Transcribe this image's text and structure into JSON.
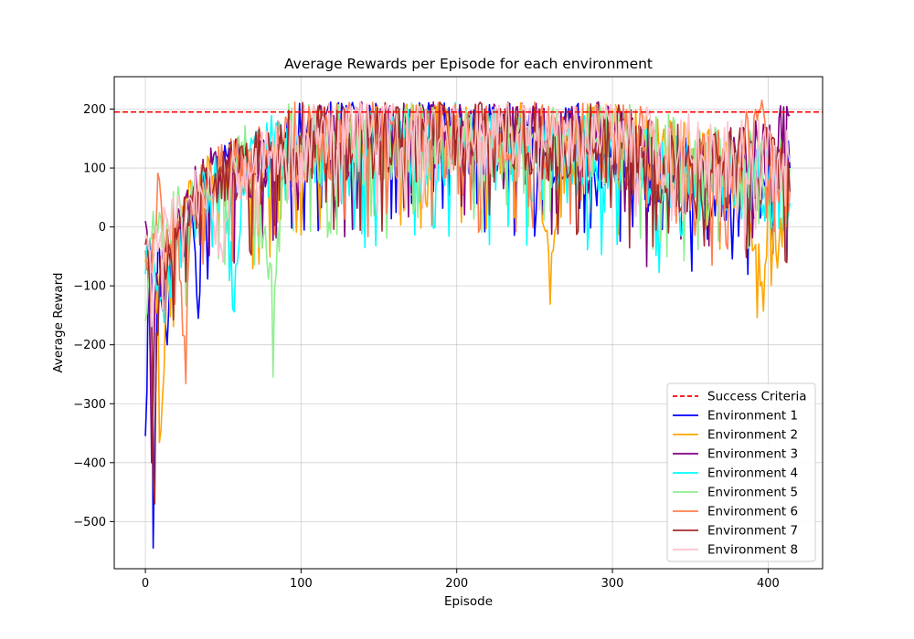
{
  "chart_data": {
    "type": "line",
    "title": "Average Rewards per Episode for each environment",
    "xlabel": "Episode",
    "ylabel": "Average Reward",
    "xlim": [
      -20,
      435
    ],
    "ylim": [
      -580,
      255
    ],
    "x_ticks": [
      0,
      100,
      200,
      300,
      400
    ],
    "y_ticks": [
      -500,
      -400,
      -300,
      -200,
      -100,
      0,
      100,
      200
    ],
    "grid": true,
    "legend_position": "lower-right",
    "episodes": [
      0,
      414
    ],
    "success_criteria": {
      "name": "Success Criteria",
      "value": 195,
      "color": "#ff0000",
      "style": "dashed"
    },
    "series": [
      {
        "name": "Environment 1",
        "color": "#0000ff",
        "anchors": [
          [
            0,
            -355
          ],
          [
            1,
            -280
          ],
          [
            2,
            -50
          ],
          [
            3,
            -20
          ],
          [
            4,
            -100
          ],
          [
            5,
            -545
          ],
          [
            6,
            -350
          ],
          [
            8,
            -30
          ],
          [
            10,
            -120
          ],
          [
            12,
            -80
          ],
          [
            14,
            -200
          ],
          [
            16,
            -60
          ],
          [
            20,
            -20
          ],
          [
            25,
            -50
          ],
          [
            30,
            30
          ],
          [
            34,
            -155
          ],
          [
            36,
            40
          ],
          [
            45,
            80
          ],
          [
            55,
            90
          ],
          [
            70,
            110
          ],
          [
            85,
            130
          ],
          [
            100,
            150
          ],
          [
            120,
            160
          ],
          [
            140,
            155
          ],
          [
            160,
            160
          ],
          [
            180,
            160
          ],
          [
            200,
            165
          ],
          [
            220,
            160
          ],
          [
            240,
            150
          ],
          [
            260,
            150
          ],
          [
            280,
            140
          ],
          [
            300,
            140
          ],
          [
            320,
            110
          ],
          [
            340,
            90
          ],
          [
            360,
            80
          ],
          [
            380,
            90
          ],
          [
            400,
            80
          ],
          [
            414,
            100
          ]
        ]
      },
      {
        "name": "Environment 2",
        "color": "#ffa500",
        "anchors": [
          [
            0,
            -60
          ],
          [
            2,
            -40
          ],
          [
            4,
            -300
          ],
          [
            6,
            -140
          ],
          [
            8,
            -80
          ],
          [
            10,
            -345
          ],
          [
            12,
            -245
          ],
          [
            14,
            -60
          ],
          [
            20,
            0
          ],
          [
            30,
            40
          ],
          [
            45,
            80
          ],
          [
            60,
            100
          ],
          [
            75,
            80
          ],
          [
            90,
            130
          ],
          [
            110,
            140
          ],
          [
            130,
            150
          ],
          [
            150,
            155
          ],
          [
            170,
            160
          ],
          [
            190,
            160
          ],
          [
            210,
            165
          ],
          [
            230,
            165
          ],
          [
            250,
            160
          ],
          [
            262,
            -40
          ],
          [
            270,
            140
          ],
          [
            290,
            160
          ],
          [
            310,
            150
          ],
          [
            330,
            120
          ],
          [
            350,
            100
          ],
          [
            370,
            90
          ],
          [
            385,
            80
          ],
          [
            395,
            -100
          ],
          [
            400,
            50
          ],
          [
            405,
            -40
          ],
          [
            414,
            90
          ]
        ]
      },
      {
        "name": "Environment 3",
        "color": "#800080",
        "anchors": [
          [
            0,
            10
          ],
          [
            2,
            -60
          ],
          [
            4,
            -400
          ],
          [
            6,
            -130
          ],
          [
            8,
            -100
          ],
          [
            10,
            -60
          ],
          [
            15,
            -30
          ],
          [
            20,
            -20
          ],
          [
            30,
            40
          ],
          [
            40,
            80
          ],
          [
            55,
            100
          ],
          [
            70,
            90
          ],
          [
            85,
            120
          ],
          [
            100,
            140
          ],
          [
            120,
            150
          ],
          [
            140,
            155
          ],
          [
            160,
            155
          ],
          [
            180,
            160
          ],
          [
            200,
            160
          ],
          [
            220,
            160
          ],
          [
            240,
            160
          ],
          [
            260,
            150
          ],
          [
            280,
            150
          ],
          [
            300,
            140
          ],
          [
            320,
            100
          ],
          [
            340,
            90
          ],
          [
            360,
            90
          ],
          [
            380,
            100
          ],
          [
            400,
            110
          ],
          [
            414,
            190
          ]
        ]
      },
      {
        "name": "Environment 4",
        "color": "#00ffff",
        "anchors": [
          [
            0,
            -80
          ],
          [
            3,
            -60
          ],
          [
            6,
            -70
          ],
          [
            8,
            -100
          ],
          [
            10,
            -120
          ],
          [
            13,
            -140
          ],
          [
            18,
            -40
          ],
          [
            25,
            -20
          ],
          [
            35,
            40
          ],
          [
            50,
            80
          ],
          [
            58,
            -65
          ],
          [
            65,
            120
          ],
          [
            80,
            140
          ],
          [
            100,
            130
          ],
          [
            120,
            120
          ],
          [
            140,
            125
          ],
          [
            160,
            130
          ],
          [
            180,
            130
          ],
          [
            200,
            140
          ],
          [
            220,
            140
          ],
          [
            240,
            120
          ],
          [
            260,
            110
          ],
          [
            280,
            120
          ],
          [
            300,
            125
          ],
          [
            320,
            100
          ],
          [
            340,
            80
          ],
          [
            360,
            70
          ],
          [
            380,
            80
          ],
          [
            400,
            70
          ],
          [
            414,
            40
          ]
        ]
      },
      {
        "name": "Environment 5",
        "color": "#90ee90",
        "anchors": [
          [
            0,
            -160
          ],
          [
            2,
            -90
          ],
          [
            4,
            -20
          ],
          [
            8,
            -10
          ],
          [
            12,
            -40
          ],
          [
            18,
            60
          ],
          [
            25,
            20
          ],
          [
            35,
            60
          ],
          [
            50,
            90
          ],
          [
            65,
            120
          ],
          [
            83,
            -105
          ],
          [
            90,
            150
          ],
          [
            110,
            140
          ],
          [
            130,
            140
          ],
          [
            150,
            145
          ],
          [
            170,
            150
          ],
          [
            190,
            150
          ],
          [
            210,
            150
          ],
          [
            230,
            150
          ],
          [
            250,
            155
          ],
          [
            270,
            155
          ],
          [
            290,
            150
          ],
          [
            310,
            140
          ],
          [
            330,
            120
          ],
          [
            350,
            110
          ],
          [
            370,
            100
          ],
          [
            390,
            100
          ],
          [
            414,
            100
          ]
        ]
      },
      {
        "name": "Environment 6",
        "color": "#ff7f50",
        "anchors": [
          [
            0,
            -40
          ],
          [
            3,
            -80
          ],
          [
            6,
            -20
          ],
          [
            9,
            80
          ],
          [
            12,
            -20
          ],
          [
            16,
            -30
          ],
          [
            20,
            10
          ],
          [
            25,
            -185
          ],
          [
            30,
            40
          ],
          [
            40,
            80
          ],
          [
            50,
            90
          ],
          [
            60,
            100
          ],
          [
            80,
            130
          ],
          [
            100,
            140
          ],
          [
            120,
            145
          ],
          [
            140,
            150
          ],
          [
            160,
            155
          ],
          [
            180,
            155
          ],
          [
            200,
            155
          ],
          [
            220,
            155
          ],
          [
            240,
            155
          ],
          [
            260,
            130
          ],
          [
            280,
            150
          ],
          [
            300,
            150
          ],
          [
            320,
            130
          ],
          [
            340,
            100
          ],
          [
            360,
            90
          ],
          [
            380,
            100
          ],
          [
            396,
            215
          ],
          [
            400,
            80
          ],
          [
            410,
            120
          ],
          [
            414,
            60
          ]
        ]
      },
      {
        "name": "Environment 7",
        "color": "#a52a2a",
        "anchors": [
          [
            0,
            -30
          ],
          [
            2,
            -60
          ],
          [
            4,
            -150
          ],
          [
            5,
            -430
          ],
          [
            6,
            -470
          ],
          [
            7,
            -180
          ],
          [
            9,
            -100
          ],
          [
            12,
            -60
          ],
          [
            16,
            -40
          ],
          [
            20,
            -20
          ],
          [
            30,
            40
          ],
          [
            45,
            90
          ],
          [
            60,
            100
          ],
          [
            80,
            120
          ],
          [
            100,
            140
          ],
          [
            120,
            150
          ],
          [
            140,
            150
          ],
          [
            160,
            155
          ],
          [
            180,
            160
          ],
          [
            200,
            160
          ],
          [
            220,
            160
          ],
          [
            240,
            160
          ],
          [
            260,
            150
          ],
          [
            280,
            150
          ],
          [
            300,
            150
          ],
          [
            320,
            120
          ],
          [
            340,
            100
          ],
          [
            360,
            100
          ],
          [
            380,
            110
          ],
          [
            400,
            110
          ],
          [
            414,
            60
          ]
        ]
      },
      {
        "name": "Environment 8",
        "color": "#ffc0cb",
        "anchors": [
          [
            0,
            -20
          ],
          [
            3,
            -40
          ],
          [
            6,
            -30
          ],
          [
            10,
            -10
          ],
          [
            15,
            0
          ],
          [
            20,
            10
          ],
          [
            30,
            40
          ],
          [
            40,
            60
          ],
          [
            50,
            -60
          ],
          [
            55,
            80
          ],
          [
            70,
            110
          ],
          [
            90,
            120
          ],
          [
            110,
            140
          ],
          [
            130,
            150
          ],
          [
            150,
            155
          ],
          [
            170,
            150
          ],
          [
            190,
            150
          ],
          [
            210,
            150
          ],
          [
            230,
            155
          ],
          [
            250,
            160
          ],
          [
            270,
            160
          ],
          [
            290,
            165
          ],
          [
            310,
            160
          ],
          [
            330,
            140
          ],
          [
            350,
            120
          ],
          [
            370,
            110
          ],
          [
            390,
            110
          ],
          [
            414,
            110
          ]
        ]
      }
    ]
  }
}
